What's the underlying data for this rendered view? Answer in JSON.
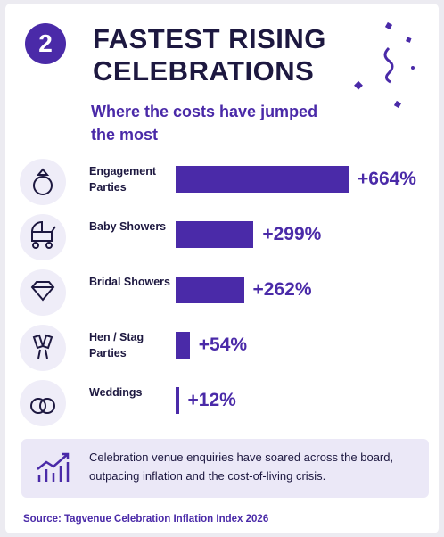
{
  "chart_data": {
    "type": "bar",
    "orientation": "horizontal",
    "badge": "2",
    "title": "FASTEST RISING CELEBRATIONS",
    "subtitle": "Where the costs have jumped the most",
    "categories": [
      "Engagement Parties",
      "Baby Showers",
      "Bridal Showers",
      "Hen / Stag Parties",
      "Weddings"
    ],
    "values": [
      664,
      299,
      262,
      54,
      12
    ],
    "value_labels": [
      "+664%",
      "+299%",
      "+262%",
      "+54%",
      "+12%"
    ],
    "color": "#4a2aa8",
    "note": "Celebration venue enquiries have soared across the board, outpacing inflation and the cost-of-living crisis.",
    "source": "Source: Tagvenue Celebration Inflation Index 2026"
  }
}
